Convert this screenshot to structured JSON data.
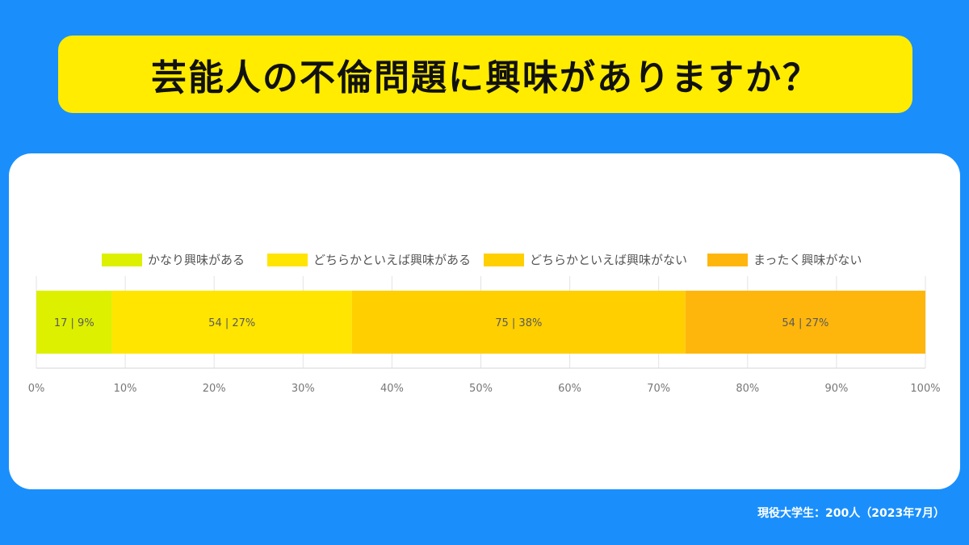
{
  "title": "芸能人の不倫問題に興味がありますか？",
  "footnote": "現役大学生：200人（2023年7月）",
  "chart_data": {
    "type": "bar",
    "orientation": "horizontal-stacked-100",
    "series": [
      {
        "name": "かなり興味がある",
        "value": 17,
        "percent": 9,
        "label": "17 | 9%",
        "color": "#ddf000"
      },
      {
        "name": "どちらかといえば興味がある",
        "value": 54,
        "percent": 27,
        "label": "54 | 27%",
        "color": "#ffe500"
      },
      {
        "name": "どちらかといえば興味がない",
        "value": 75,
        "percent": 38,
        "label": "75 | 38%",
        "color": "#ffcf00"
      },
      {
        "name": "まったく興味がない",
        "value": 54,
        "percent": 27,
        "label": "54 | 27%",
        "color": "#ffb60c"
      }
    ],
    "total": 200,
    "xlim": [
      0,
      100
    ],
    "ticks": [
      0,
      10,
      20,
      30,
      40,
      50,
      60,
      70,
      80,
      90,
      100
    ],
    "tick_labels": [
      "0%",
      "10%",
      "20%",
      "30%",
      "40%",
      "50%",
      "60%",
      "70%",
      "80%",
      "90%",
      "100%"
    ],
    "grid": true,
    "legend_position": "top"
  }
}
